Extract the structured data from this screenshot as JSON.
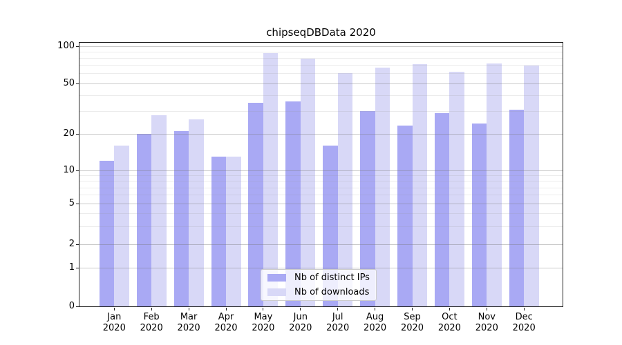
{
  "chart_data": {
    "type": "bar",
    "title": "chipseqDBData 2020",
    "categories": [
      "Jan",
      "Feb",
      "Mar",
      "Apr",
      "May",
      "Jun",
      "Jul",
      "Aug",
      "Sep",
      "Oct",
      "Nov",
      "Dec"
    ],
    "year_label": "2020",
    "series": [
      {
        "name": "Nb of distinct IPs",
        "color": "#a9a9f4",
        "values": [
          12,
          20,
          21,
          13,
          35,
          36,
          16,
          30,
          23,
          29,
          24,
          31
        ]
      },
      {
        "name": "Nb of downloads",
        "color": "#d8d8f7",
        "values": [
          16,
          28,
          26,
          13,
          87,
          79,
          60,
          67,
          71,
          62,
          72,
          69
        ]
      }
    ],
    "y_axis": {
      "scale": "pseudo-log",
      "ticks": [
        100,
        50,
        20,
        10,
        5,
        2,
        1,
        0
      ],
      "minor_ticks": [
        90,
        80,
        70,
        60,
        40,
        30,
        9,
        8,
        7,
        6,
        4,
        3
      ]
    },
    "xlabel": "",
    "ylabel": "",
    "grid": "horizontal",
    "legend_position": "bottom-center"
  }
}
